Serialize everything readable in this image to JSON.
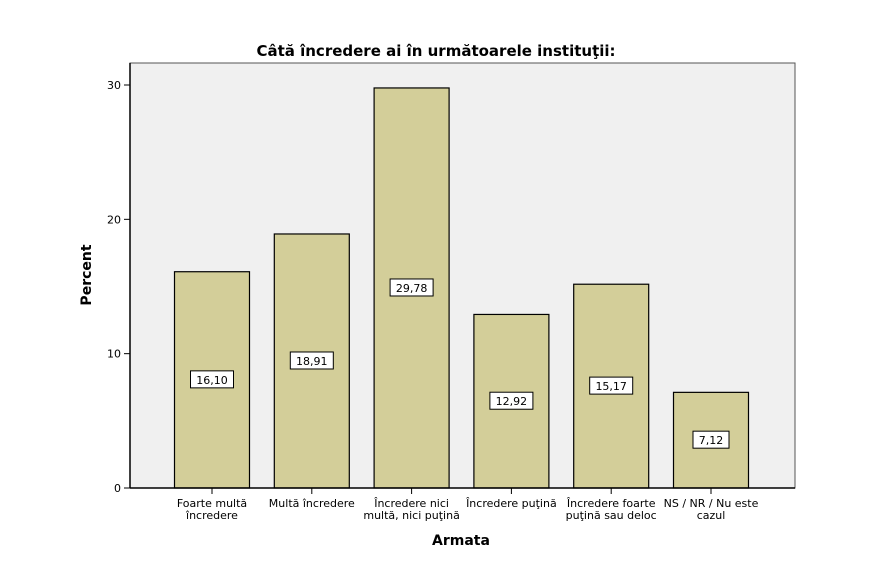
{
  "chart_data": {
    "type": "bar",
    "title": "Câtă încredere ai în următoarele instituţii:",
    "xlabel": "Armata",
    "ylabel": "Percent",
    "ylim": [
      0,
      30
    ],
    "yticks": [
      0,
      10,
      20,
      30
    ],
    "grid": false,
    "categories": [
      [
        "Foarte multă",
        "încredere"
      ],
      [
        "Multă încredere"
      ],
      [
        "Încredere nici",
        "multă, nici puţină"
      ],
      [
        "Încredere puţină"
      ],
      [
        "Încredere foarte",
        "puţină sau deloc"
      ],
      [
        "NS / NR / Nu este",
        "cazul"
      ]
    ],
    "values": [
      16.1,
      18.91,
      29.78,
      12.92,
      15.17,
      7.12
    ],
    "data_labels": [
      "16,10",
      "18,91",
      "29,78",
      "12,92",
      "15,17",
      "7,12"
    ],
    "colors": {
      "bar": "#d3ce99",
      "bar_stroke": "#000000",
      "plot_bg": "#f0f0f0"
    }
  }
}
